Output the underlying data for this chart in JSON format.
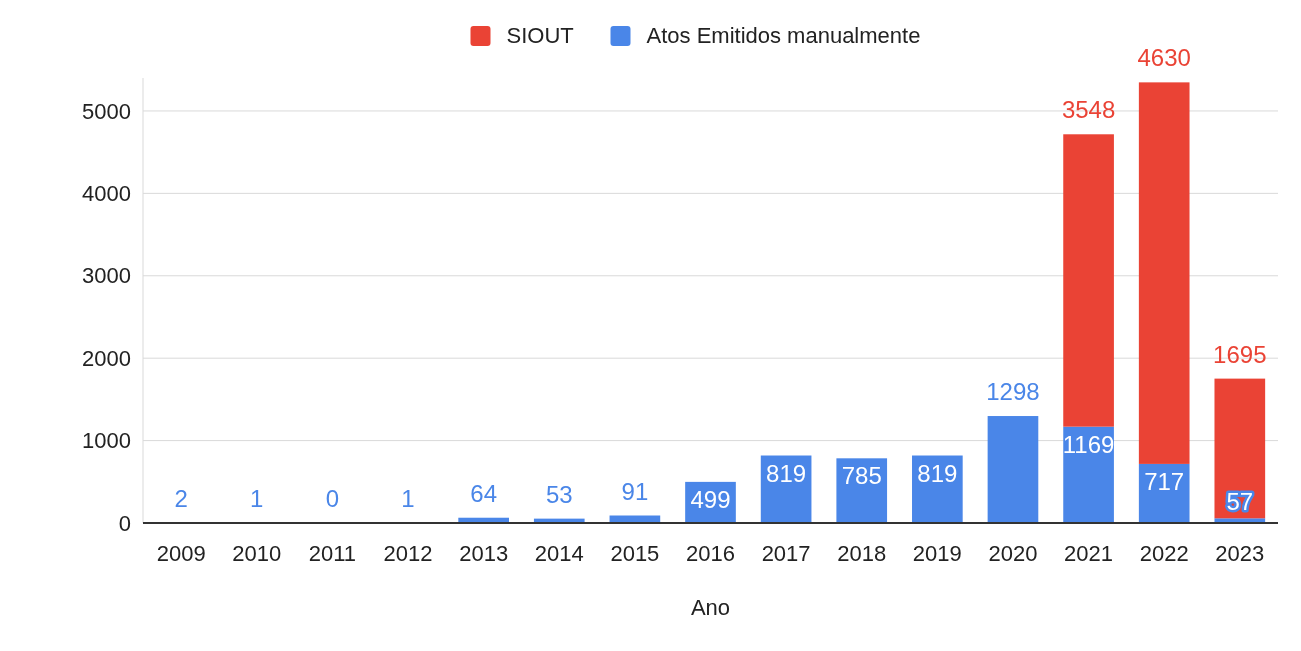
{
  "chart_data": {
    "type": "bar",
    "stacked": true,
    "xlabel": "Ano",
    "categories": [
      "2009",
      "2010",
      "2011",
      "2012",
      "2013",
      "2014",
      "2015",
      "2016",
      "2017",
      "2018",
      "2019",
      "2020",
      "2021",
      "2022",
      "2023"
    ],
    "series": [
      {
        "name": "Atos Emitidos manualmente",
        "color": "#4a86e8",
        "values": [
          2,
          1,
          0,
          1,
          64,
          53,
          91,
          499,
          819,
          785,
          819,
          1298,
          1169,
          717,
          57
        ]
      },
      {
        "name": "SIOUT",
        "color": "#ea4335",
        "values": [
          null,
          null,
          null,
          null,
          null,
          null,
          null,
          null,
          null,
          null,
          null,
          null,
          3548,
          4630,
          1695
        ]
      }
    ],
    "ylim": [
      0,
      5400
    ],
    "yticks": [
      0,
      1000,
      2000,
      3000,
      4000,
      5000
    ],
    "grid": "y",
    "legend": "top",
    "data_labels": true
  }
}
